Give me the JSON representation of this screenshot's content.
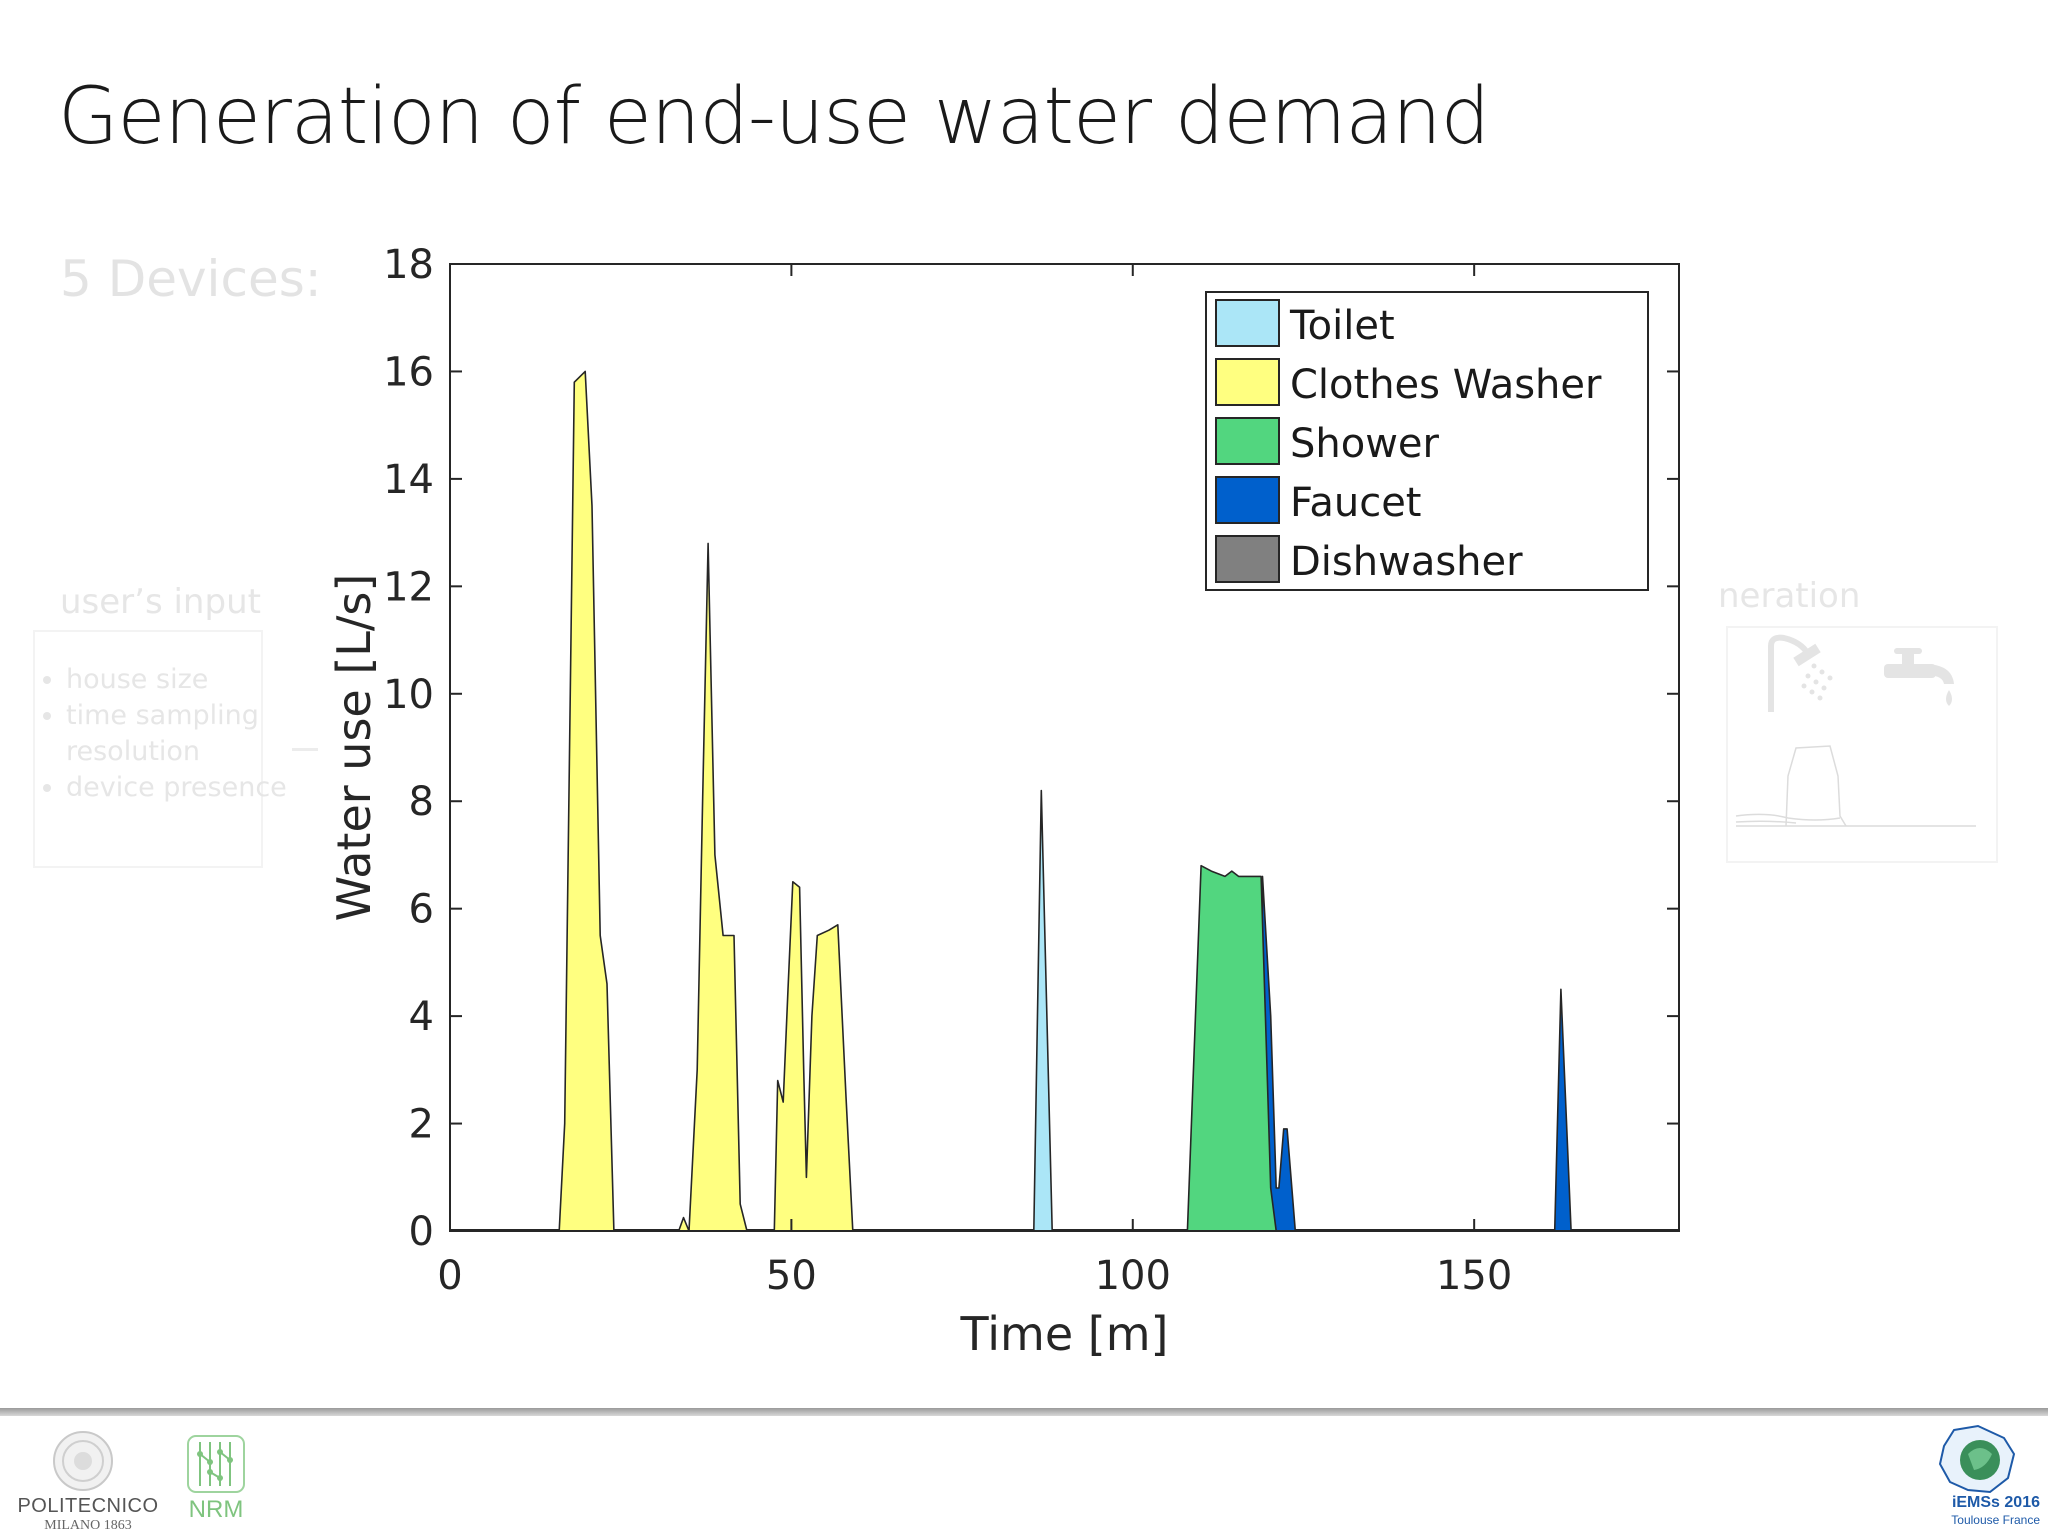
{
  "slide": {
    "title": "Generation of end-use water demand",
    "devices_label": "5 Devices:",
    "input_box": {
      "title": "user’s input",
      "items": [
        "house size",
        "time sampling resolution",
        "device presence"
      ]
    },
    "generation_box": {
      "title": "neration",
      "icons": [
        "shower-icon",
        "faucet-icon",
        "mini-chart-icon"
      ]
    }
  },
  "footer": {
    "polimi": {
      "name": "POLITECNICO",
      "sub": "MILANO 1863"
    },
    "nrm": {
      "name": "NRM"
    },
    "iemss": {
      "name": "iEMSs 2016",
      "sub": "Toulouse France"
    }
  },
  "chart_data": {
    "type": "area",
    "title": "",
    "xlabel": "Time [m]",
    "ylabel": "Water use [L/s]",
    "xlim": [
      0,
      180
    ],
    "ylim": [
      0,
      18
    ],
    "xticks": [
      0,
      50,
      100,
      150
    ],
    "yticks": [
      0,
      2,
      4,
      6,
      8,
      10,
      12,
      14,
      16,
      18
    ],
    "grid": false,
    "legend_position": "top-right",
    "legend": [
      {
        "name": "Toilet",
        "color": "#abe6f7"
      },
      {
        "name": "Clothes Washer",
        "color": "#ffff80"
      },
      {
        "name": "Shower",
        "color": "#52d67f"
      },
      {
        "name": "Faucet",
        "color": "#0060cc"
      },
      {
        "name": "Dishwasher",
        "color": "#808080"
      }
    ],
    "series": [
      {
        "name": "Clothes Washer",
        "color": "#ffff80",
        "points": [
          [
            16,
            0
          ],
          [
            16.8,
            2
          ],
          [
            18.2,
            15.8
          ],
          [
            19.8,
            16
          ],
          [
            20.8,
            13.5
          ],
          [
            22,
            5.5
          ],
          [
            23,
            4.6
          ],
          [
            24,
            0
          ]
        ]
      },
      {
        "name": "Clothes Washer",
        "color": "#ffff80",
        "points": [
          [
            33.5,
            0
          ],
          [
            34.2,
            0.25
          ],
          [
            35,
            0
          ],
          [
            36.2,
            3
          ],
          [
            37,
            8
          ],
          [
            37.8,
            12.8
          ],
          [
            38.8,
            7
          ],
          [
            40,
            5.5
          ],
          [
            41.6,
            5.5
          ],
          [
            42.5,
            0.5
          ],
          [
            43.5,
            0
          ]
        ]
      },
      {
        "name": "Clothes Washer",
        "color": "#ffff80",
        "points": [
          [
            47.5,
            0
          ],
          [
            48,
            2.8
          ],
          [
            48.8,
            2.4
          ],
          [
            49.5,
            4.5
          ],
          [
            50.2,
            6.5
          ],
          [
            51.2,
            6.4
          ],
          [
            51.8,
            3
          ],
          [
            52.2,
            1
          ],
          [
            53,
            4
          ],
          [
            53.8,
            5.5
          ],
          [
            55.5,
            5.6
          ],
          [
            56.8,
            5.7
          ],
          [
            58,
            2.5
          ],
          [
            59,
            0
          ]
        ]
      },
      {
        "name": "Toilet",
        "color": "#abe6f7",
        "points": [
          [
            85.5,
            0
          ],
          [
            86.6,
            8.2
          ],
          [
            88.2,
            0
          ]
        ]
      },
      {
        "name": "Faucet",
        "color": "#0060cc",
        "points": [
          [
            118.8,
            0
          ],
          [
            119,
            6.6
          ],
          [
            120.2,
            4
          ],
          [
            121,
            0.8
          ],
          [
            121.4,
            0.8
          ],
          [
            122.1,
            1.9
          ],
          [
            122.6,
            1.9
          ],
          [
            123.8,
            0
          ]
        ]
      },
      {
        "name": "Shower",
        "color": "#52d67f",
        "points": [
          [
            108,
            0
          ],
          [
            110,
            6.8
          ],
          [
            111.5,
            6.7
          ],
          [
            113.5,
            6.6
          ],
          [
            114.5,
            6.7
          ],
          [
            115.5,
            6.6
          ],
          [
            117,
            6.6
          ],
          [
            118.8,
            6.6
          ],
          [
            120.2,
            0.8
          ],
          [
            121,
            0
          ]
        ]
      },
      {
        "name": "Faucet",
        "color": "#0060cc",
        "points": [
          [
            161.8,
            0
          ],
          [
            162.7,
            4.5
          ],
          [
            164.2,
            0
          ]
        ]
      }
    ]
  }
}
